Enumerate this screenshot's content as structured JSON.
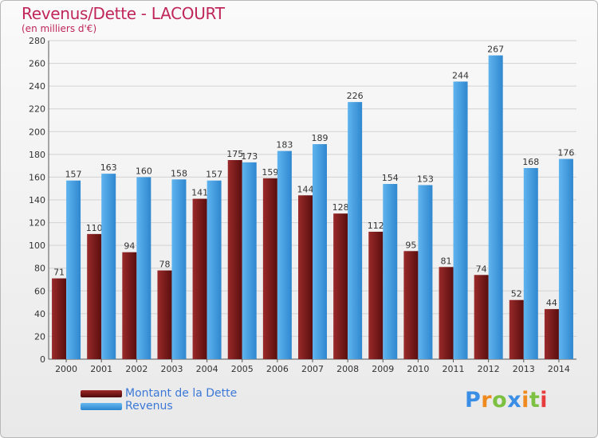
{
  "chart_data": {
    "type": "bar",
    "title": "Revenus/Dette - LACOURT",
    "subtitle": "(en milliers d'€)",
    "categories": [
      "2000",
      "2001",
      "2002",
      "2003",
      "2004",
      "2005",
      "2006",
      "2007",
      "2008",
      "2009",
      "2010",
      "2011",
      "2012",
      "2013",
      "2014"
    ],
    "series": [
      {
        "name": "Montant de la Dette",
        "color": "#7a1818",
        "values": [
          71,
          110,
          94,
          78,
          141,
          175,
          159,
          144,
          128,
          112,
          95,
          81,
          74,
          52,
          44
        ]
      },
      {
        "name": "Revenus",
        "color": "#4aa3e6",
        "values": [
          157,
          163,
          160,
          158,
          157,
          173,
          183,
          189,
          226,
          154,
          153,
          244,
          267,
          168,
          176
        ]
      }
    ],
    "ylim": [
      0,
      280
    ],
    "yticks": [
      0,
      20,
      40,
      60,
      80,
      100,
      120,
      140,
      160,
      180,
      200,
      220,
      240,
      260,
      280
    ],
    "grid": true,
    "legend_position": "bottom-left"
  },
  "logo": {
    "text": "Proxiti",
    "letter_colors": [
      "#3a8ee6",
      "#ef8a1f",
      "#7cc142",
      "#3a8ee6",
      "#ef8a1f",
      "#7cc142",
      "#e83b3b"
    ]
  }
}
